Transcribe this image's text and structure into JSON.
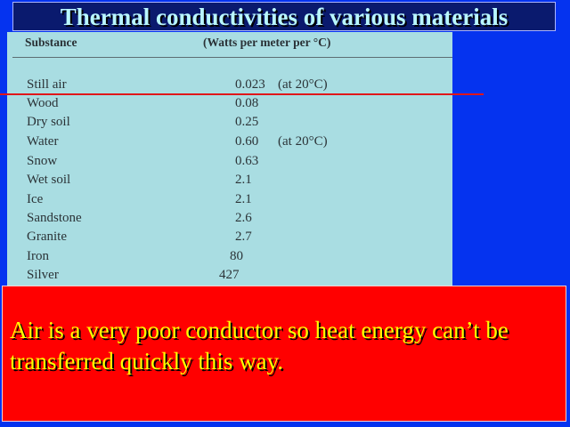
{
  "title": "Thermal conductivities of various materials",
  "table": {
    "header_substance": "Substance",
    "header_units": "(Watts per meter per °C)",
    "rows": [
      {
        "substance": "Still air",
        "value": "0.023",
        "note": "(at 20°C)"
      },
      {
        "substance": "Wood",
        "value": "0.08",
        "note": ""
      },
      {
        "substance": "Dry soil",
        "value": "0.25",
        "note": ""
      },
      {
        "substance": "Water",
        "value": "0.60",
        "note": "(at 20°C)"
      },
      {
        "substance": "Snow",
        "value": "0.63",
        "note": ""
      },
      {
        "substance": "Wet soil",
        "value": "2.1",
        "note": ""
      },
      {
        "substance": "Ice",
        "value": "2.1",
        "note": ""
      },
      {
        "substance": "Sandstone",
        "value": "2.6",
        "note": ""
      },
      {
        "substance": "Granite",
        "value": "2.7",
        "note": ""
      },
      {
        "substance": "Iron",
        "value": "80",
        "note": ""
      },
      {
        "substance": "Silver",
        "value": "427",
        "note": ""
      }
    ]
  },
  "caption": "Air is a very poor conductor so heat energy can’t be transferred quickly this way.",
  "colors": {
    "background": "#0533ef",
    "title_text": "#b9f7ff",
    "table_background": "#a9dde2",
    "highlight_line": "#e0161a",
    "caption_background": "#ff0000",
    "caption_text": "#ffff00"
  }
}
